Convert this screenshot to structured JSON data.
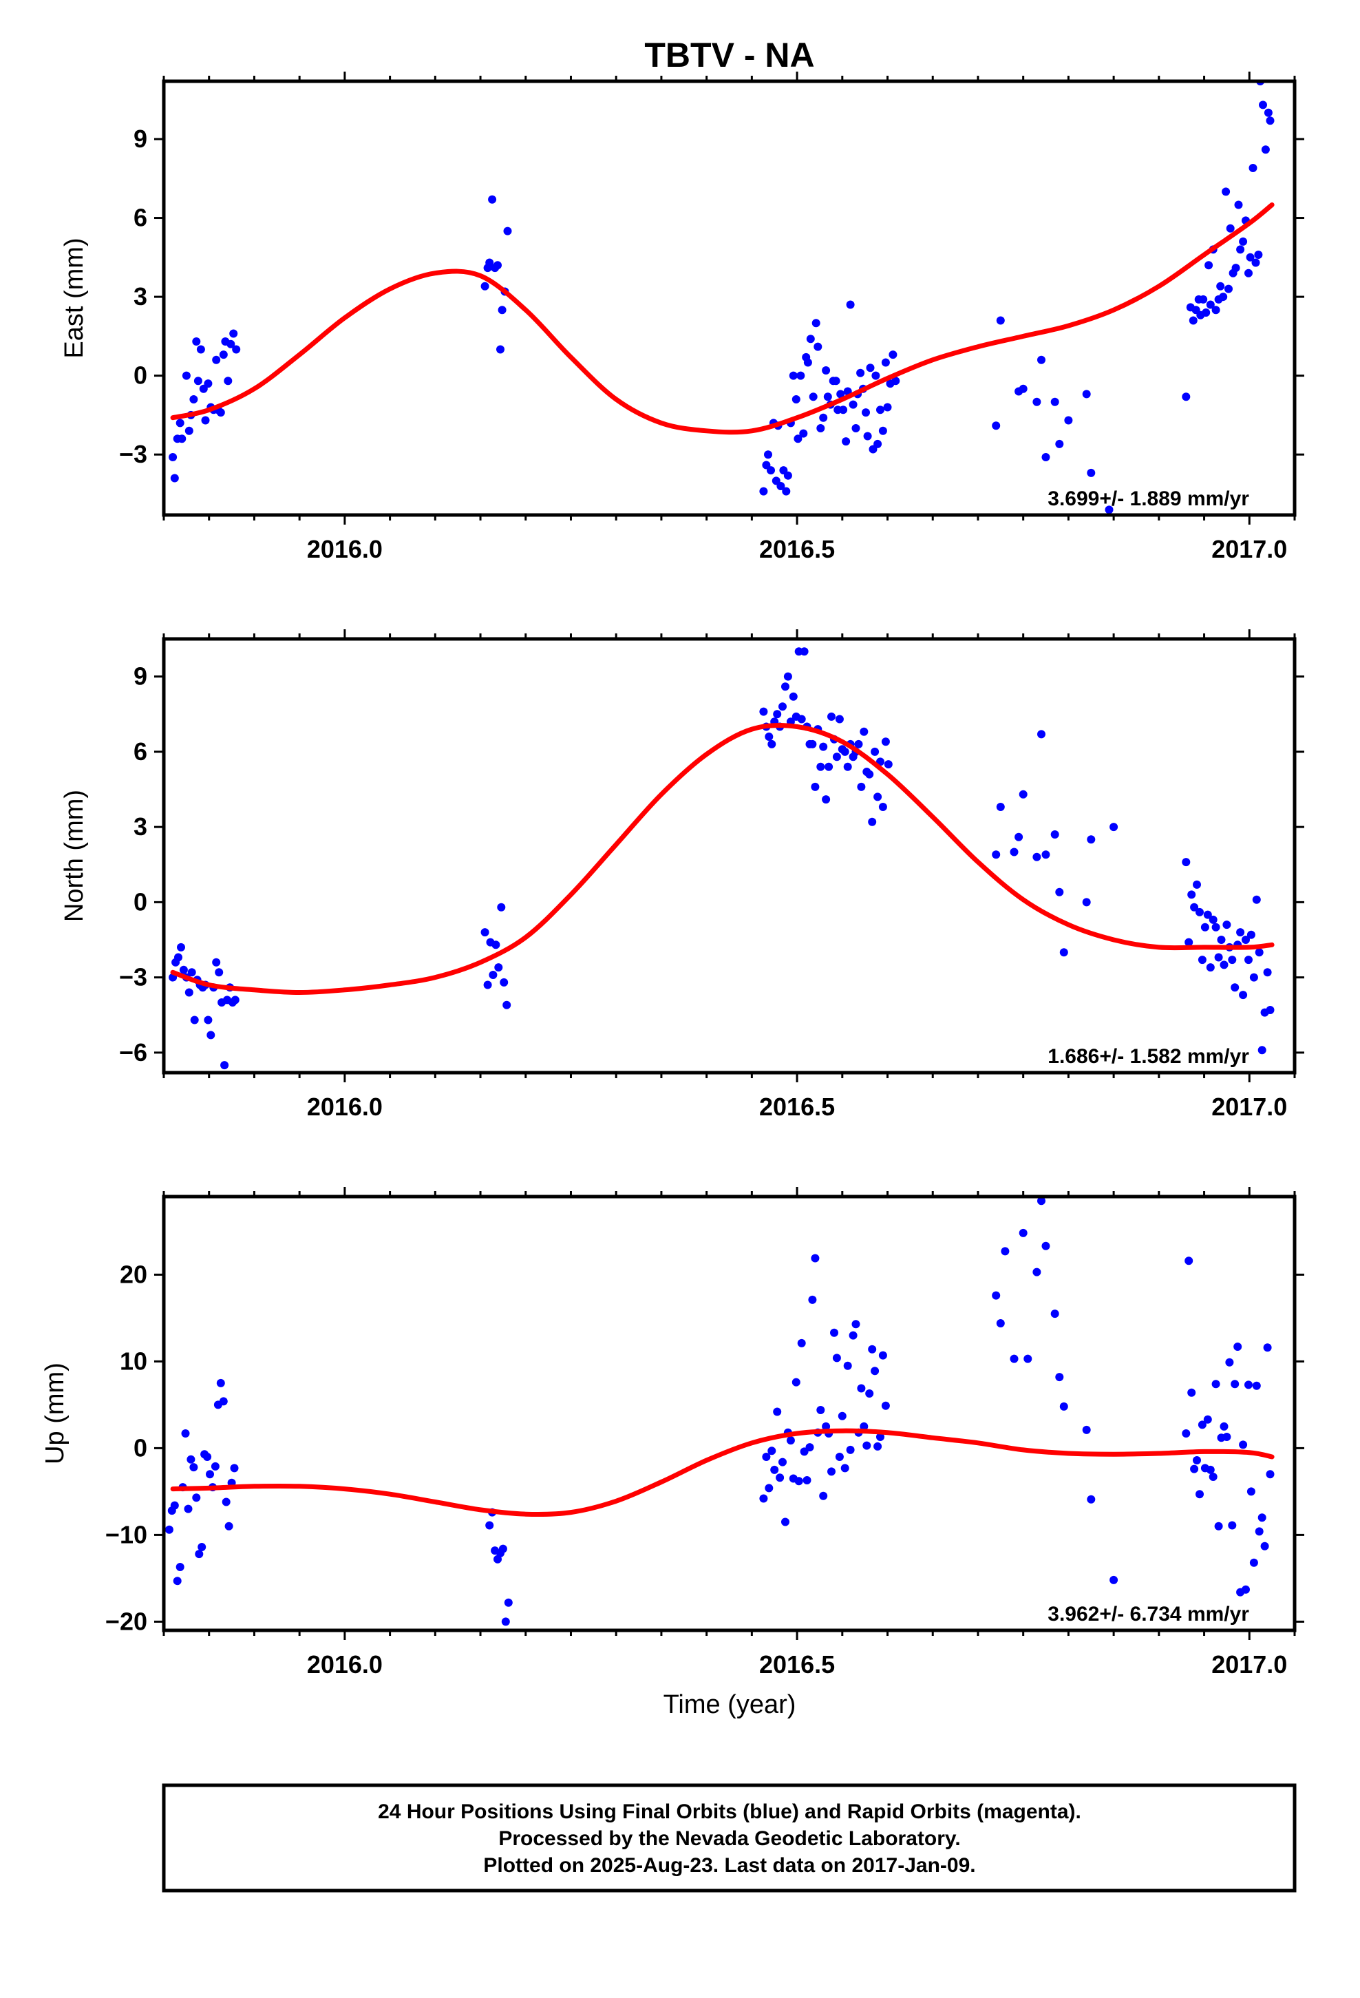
{
  "title": "TBTV - NA",
  "x_axis_label": "Time (year)",
  "footer_lines": [
    "24 Hour Positions Using Final Orbits (blue) and Rapid Orbits (magenta).",
    "Processed by the Nevada Geodetic Laboratory.",
    "Plotted on 2025-Aug-23. Last data on 2017-Jan-09."
  ],
  "colors": {
    "points": "#0000ff",
    "fit": "#ff0000",
    "frame": "#000000"
  },
  "chart_data": [
    {
      "type": "scatter",
      "ylabel": "East (mm)",
      "xlim": [
        2015.8,
        2017.05
      ],
      "ylim": [
        -5.3,
        11.2
      ],
      "xticks": [
        2016.0,
        2016.5,
        2017.0
      ],
      "xtick_labels": [
        "2016.0",
        "2016.5",
        "2017.0"
      ],
      "yticks": [
        -3,
        0,
        3,
        6,
        9
      ],
      "ytick_labels": [
        "−3",
        "0",
        "3",
        "6",
        "9"
      ],
      "grid": false,
      "rate_label": "3.699+/- 1.889 mm/yr",
      "points": {
        "x": [
          2015.81,
          2015.812,
          2015.815,
          2015.818,
          2015.82,
          2015.825,
          2015.828,
          2015.83,
          2015.833,
          2015.836,
          2015.838,
          2015.841,
          2015.844,
          2015.846,
          2015.849,
          2015.852,
          2015.855,
          2015.858,
          2015.86,
          2015.863,
          2015.866,
          2015.868,
          2015.871,
          2015.874,
          2015.877,
          2015.88,
          2016.155,
          2016.158,
          2016.16,
          2016.163,
          2016.166,
          2016.169,
          2016.172,
          2016.174,
          2016.177,
          2016.18,
          2016.463,
          2016.466,
          2016.468,
          2016.471,
          2016.474,
          2016.477,
          2016.479,
          2016.482,
          2016.485,
          2016.488,
          2016.49,
          2016.493,
          2016.496,
          2016.499,
          2016.501,
          2016.504,
          2016.507,
          2016.51,
          2016.512,
          2016.515,
          2016.518,
          2016.521,
          2016.523,
          2016.526,
          2016.529,
          2016.532,
          2016.534,
          2016.537,
          2016.54,
          2016.543,
          2016.545,
          2016.548,
          2016.551,
          2016.554,
          2016.556,
          2016.559,
          2016.562,
          2016.565,
          2016.567,
          2016.57,
          2016.573,
          2016.576,
          2016.578,
          2016.581,
          2016.584,
          2016.587,
          2016.589,
          2016.592,
          2016.595,
          2016.598,
          2016.6,
          2016.603,
          2016.606,
          2016.609,
          2016.72,
          2016.725,
          2016.745,
          2016.75,
          2016.765,
          2016.77,
          2016.775,
          2016.785,
          2016.79,
          2016.8,
          2016.82,
          2016.825,
          2016.845,
          2016.93,
          2016.935,
          2016.938,
          2016.941,
          2016.944,
          2016.946,
          2016.949,
          2016.952,
          2016.955,
          2016.957,
          2016.96,
          2016.963,
          2016.966,
          2016.968,
          2016.971,
          2016.974,
          2016.977,
          2016.979,
          2016.982,
          2016.985,
          2016.988,
          2016.99,
          2016.993,
          2016.996,
          2016.999,
          2017.001,
          2017.004,
          2017.007,
          2017.01,
          2017.012,
          2017.015,
          2017.018,
          2017.021,
          2017.023
        ],
        "y": [
          -3.1,
          -3.9,
          -2.4,
          -1.8,
          -2.4,
          0.0,
          -2.1,
          -1.5,
          -0.9,
          1.3,
          -0.2,
          1.0,
          -0.5,
          -1.7,
          -0.3,
          -1.2,
          -1.3,
          0.6,
          -1.3,
          -1.4,
          0.8,
          1.3,
          -0.2,
          1.2,
          1.6,
          1.0,
          3.4,
          4.1,
          4.3,
          6.7,
          4.1,
          4.2,
          1.0,
          2.5,
          3.2,
          5.5,
          -4.4,
          -3.4,
          -3.0,
          -3.6,
          -1.8,
          -4.0,
          -1.9,
          -4.2,
          -3.6,
          -4.4,
          -3.8,
          -1.8,
          0.0,
          -0.9,
          -2.4,
          0.0,
          -2.2,
          0.7,
          0.5,
          1.4,
          -0.8,
          2.0,
          1.1,
          -2.0,
          -1.6,
          0.2,
          -0.8,
          -1.1,
          -0.2,
          -0.2,
          -1.3,
          -0.7,
          -1.3,
          -2.5,
          -0.6,
          2.7,
          -1.1,
          -2.0,
          -0.7,
          0.1,
          -0.5,
          -1.4,
          -2.3,
          0.3,
          -2.8,
          0.0,
          -2.6,
          -1.3,
          -2.1,
          0.5,
          -1.2,
          -0.3,
          0.8,
          -0.2,
          -1.9,
          2.1,
          -0.6,
          -0.5,
          -1.0,
          0.6,
          -3.1,
          -1.0,
          -2.6,
          -1.7,
          -0.7,
          -3.7,
          -5.1,
          -0.8,
          2.6,
          2.1,
          2.5,
          2.9,
          2.3,
          2.9,
          2.4,
          4.2,
          2.7,
          4.8,
          2.5,
          2.9,
          3.4,
          3.0,
          7.0,
          3.3,
          5.6,
          3.9,
          4.1,
          6.5,
          4.8,
          5.1,
          5.9,
          3.9,
          4.5,
          7.9,
          4.3,
          4.6,
          11.2,
          10.3,
          8.6,
          10.0,
          9.7
        ]
      },
      "fit": {
        "x": [
          2015.81,
          2015.85,
          2015.9,
          2015.95,
          2016.0,
          2016.05,
          2016.1,
          2016.15,
          2016.2,
          2016.25,
          2016.3,
          2016.35,
          2016.4,
          2016.45,
          2016.5,
          2016.55,
          2016.6,
          2016.65,
          2016.7,
          2016.75,
          2016.8,
          2016.85,
          2016.9,
          2016.95,
          2017.0,
          2017.025
        ],
        "y": [
          -1.6,
          -1.3,
          -0.5,
          0.8,
          2.2,
          3.3,
          3.9,
          3.8,
          2.5,
          0.7,
          -0.9,
          -1.8,
          -2.1,
          -2.1,
          -1.6,
          -0.9,
          -0.1,
          0.6,
          1.1,
          1.5,
          1.9,
          2.5,
          3.4,
          4.6,
          5.8,
          6.5
        ]
      }
    },
    {
      "type": "scatter",
      "ylabel": "North (mm)",
      "xlim": [
        2015.8,
        2017.05
      ],
      "ylim": [
        -6.8,
        10.5
      ],
      "xticks": [
        2016.0,
        2016.5,
        2017.0
      ],
      "xtick_labels": [
        "2016.0",
        "2016.5",
        "2017.0"
      ],
      "yticks": [
        -6,
        -3,
        0,
        3,
        6,
        9
      ],
      "ytick_labels": [
        "−6",
        "−3",
        "0",
        "3",
        "6",
        "9"
      ],
      "grid": false,
      "rate_label": "1.686+/- 1.582 mm/yr",
      "points": {
        "x": [
          2015.81,
          2015.813,
          2015.816,
          2015.819,
          2015.822,
          2015.825,
          2015.828,
          2015.831,
          2015.834,
          2015.837,
          2015.84,
          2015.843,
          2015.846,
          2015.849,
          2015.852,
          2015.855,
          2015.858,
          2015.861,
          2015.864,
          2015.867,
          2015.87,
          2015.873,
          2015.876,
          2015.879,
          2016.155,
          2016.158,
          2016.161,
          2016.164,
          2016.167,
          2016.17,
          2016.173,
          2016.176,
          2016.179,
          2016.463,
          2016.466,
          2016.469,
          2016.472,
          2016.475,
          2016.478,
          2016.481,
          2016.484,
          2016.487,
          2016.49,
          2016.493,
          2016.496,
          2016.499,
          2016.502,
          2016.505,
          2016.508,
          2016.511,
          2016.514,
          2016.517,
          2016.52,
          2016.523,
          2016.526,
          2016.529,
          2016.532,
          2016.535,
          2016.538,
          2016.541,
          2016.544,
          2016.547,
          2016.55,
          2016.553,
          2016.556,
          2016.559,
          2016.562,
          2016.565,
          2016.568,
          2016.571,
          2016.574,
          2016.577,
          2016.58,
          2016.583,
          2016.586,
          2016.589,
          2016.592,
          2016.595,
          2016.598,
          2016.601,
          2016.72,
          2016.725,
          2016.74,
          2016.745,
          2016.75,
          2016.765,
          2016.77,
          2016.775,
          2016.785,
          2016.79,
          2016.795,
          2016.82,
          2016.825,
          2016.85,
          2016.93,
          2016.933,
          2016.936,
          2016.939,
          2016.942,
          2016.945,
          2016.948,
          2016.951,
          2016.954,
          2016.957,
          2016.96,
          2016.963,
          2016.966,
          2016.969,
          2016.972,
          2016.975,
          2016.978,
          2016.981,
          2016.984,
          2016.987,
          2016.99,
          2016.993,
          2016.996,
          2016.999,
          2017.002,
          2017.005,
          2017.008,
          2017.011,
          2017.014,
          2017.017,
          2017.02,
          2017.023
        ],
        "y": [
          -3.0,
          -2.4,
          -2.2,
          -1.8,
          -2.7,
          -3.0,
          -3.6,
          -2.8,
          -4.7,
          -3.1,
          -3.3,
          -3.4,
          -3.3,
          -4.7,
          -5.3,
          -3.4,
          -2.4,
          -2.8,
          -4.0,
          -6.5,
          -3.9,
          -3.4,
          -4.0,
          -3.9,
          -1.2,
          -3.3,
          -1.6,
          -2.9,
          -1.7,
          -2.6,
          -0.2,
          -3.2,
          -4.1,
          7.6,
          7.0,
          6.6,
          6.3,
          7.2,
          7.5,
          7.0,
          7.8,
          8.6,
          9.0,
          7.2,
          8.2,
          7.4,
          10.0,
          7.3,
          10.0,
          7.0,
          6.3,
          6.3,
          4.6,
          6.9,
          5.4,
          6.2,
          4.1,
          5.4,
          7.4,
          6.5,
          5.8,
          7.3,
          6.1,
          6.0,
          5.4,
          6.3,
          5.8,
          6.0,
          6.3,
          4.6,
          6.8,
          5.2,
          5.1,
          3.2,
          6.0,
          4.2,
          5.6,
          3.8,
          6.4,
          5.5,
          1.9,
          3.8,
          2.0,
          2.6,
          4.3,
          1.8,
          6.7,
          1.9,
          2.7,
          0.4,
          -2.0,
          0.0,
          2.5,
          3.0,
          1.6,
          -1.6,
          0.3,
          -0.2,
          0.7,
          -0.4,
          -2.3,
          -1.0,
          -0.5,
          -2.6,
          -0.7,
          -1.0,
          -2.2,
          -1.5,
          -2.5,
          -0.9,
          -1.8,
          -2.3,
          -3.4,
          -1.7,
          -1.2,
          -3.7,
          -1.5,
          -2.3,
          -1.3,
          -3.0,
          0.1,
          -2.0,
          -5.9,
          -4.4,
          -2.8,
          -4.3
        ]
      },
      "fit": {
        "x": [
          2015.81,
          2015.85,
          2015.9,
          2015.95,
          2016.0,
          2016.05,
          2016.1,
          2016.15,
          2016.2,
          2016.25,
          2016.3,
          2016.35,
          2016.4,
          2016.45,
          2016.5,
          2016.55,
          2016.6,
          2016.65,
          2016.7,
          2016.75,
          2016.8,
          2016.85,
          2016.9,
          2016.95,
          2017.0,
          2017.025
        ],
        "y": [
          -2.8,
          -3.3,
          -3.5,
          -3.6,
          -3.5,
          -3.3,
          -3.0,
          -2.4,
          -1.4,
          0.3,
          2.3,
          4.3,
          5.9,
          6.9,
          7.0,
          6.4,
          5.1,
          3.4,
          1.6,
          0.1,
          -0.9,
          -1.5,
          -1.8,
          -1.8,
          -1.8,
          -1.7
        ]
      }
    },
    {
      "type": "scatter",
      "ylabel": "Up (mm)",
      "xlim": [
        2015.8,
        2017.05
      ],
      "ylim": [
        -21,
        29
      ],
      "xticks": [
        2016.0,
        2016.5,
        2017.0
      ],
      "xtick_labels": [
        "2016.0",
        "2016.5",
        "2017.0"
      ],
      "yticks": [
        -20,
        -10,
        0,
        10,
        20
      ],
      "ytick_labels": [
        "−20",
        "−10",
        "0",
        "10",
        "20"
      ],
      "grid": false,
      "rate_label": "3.962+/- 6.734 mm/yr",
      "points": {
        "x": [
          2015.806,
          2015.809,
          2015.812,
          2015.815,
          2015.818,
          2015.821,
          2015.824,
          2015.827,
          2015.83,
          2015.833,
          2015.836,
          2015.839,
          2015.842,
          2015.845,
          2015.848,
          2015.851,
          2015.854,
          2015.857,
          2015.86,
          2015.863,
          2015.866,
          2015.869,
          2015.872,
          2015.875,
          2015.878,
          2016.16,
          2016.163,
          2016.166,
          2016.169,
          2016.172,
          2016.175,
          2016.178,
          2016.181,
          2016.463,
          2016.466,
          2016.469,
          2016.472,
          2016.475,
          2016.478,
          2016.481,
          2016.484,
          2016.487,
          2016.49,
          2016.493,
          2016.496,
          2016.499,
          2016.502,
          2016.505,
          2016.508,
          2016.511,
          2016.514,
          2016.517,
          2016.52,
          2016.523,
          2016.526,
          2016.529,
          2016.532,
          2016.535,
          2016.538,
          2016.541,
          2016.544,
          2016.547,
          2016.55,
          2016.553,
          2016.556,
          2016.559,
          2016.562,
          2016.565,
          2016.568,
          2016.571,
          2016.574,
          2016.577,
          2016.58,
          2016.583,
          2016.586,
          2016.589,
          2016.592,
          2016.595,
          2016.598,
          2016.72,
          2016.725,
          2016.73,
          2016.74,
          2016.75,
          2016.755,
          2016.765,
          2016.77,
          2016.775,
          2016.785,
          2016.79,
          2016.795,
          2016.82,
          2016.825,
          2016.85,
          2016.93,
          2016.933,
          2016.936,
          2016.939,
          2016.942,
          2016.945,
          2016.948,
          2016.951,
          2016.954,
          2016.957,
          2016.96,
          2016.963,
          2016.966,
          2016.969,
          2016.972,
          2016.975,
          2016.978,
          2016.981,
          2016.984,
          2016.987,
          2016.99,
          2016.993,
          2016.996,
          2016.999,
          2017.002,
          2017.005,
          2017.008,
          2017.011,
          2017.014,
          2017.017,
          2017.02,
          2017.023
        ],
        "y": [
          -9.4,
          -7.2,
          -6.6,
          -15.3,
          -13.7,
          -4.5,
          1.7,
          -7.0,
          -1.3,
          -2.2,
          -5.7,
          -12.2,
          -11.4,
          -0.7,
          -1.0,
          -3.0,
          -4.5,
          -2.1,
          5.0,
          7.5,
          5.4,
          -6.2,
          -9.0,
          -4.0,
          -2.3,
          -8.9,
          -7.4,
          -11.8,
          -12.8,
          -12.1,
          -11.6,
          -20.0,
          -17.8,
          -5.8,
          -1.0,
          -4.6,
          -0.3,
          -2.5,
          4.2,
          -3.4,
          -1.6,
          -8.5,
          1.8,
          0.9,
          -3.5,
          7.6,
          -3.8,
          12.1,
          -0.4,
          -3.7,
          0.1,
          17.1,
          21.9,
          1.8,
          4.4,
          -5.5,
          2.5,
          1.7,
          -2.7,
          13.3,
          10.4,
          -1.0,
          3.7,
          -2.3,
          9.5,
          -0.2,
          13.0,
          14.3,
          1.8,
          6.9,
          2.5,
          0.3,
          6.3,
          11.4,
          8.9,
          0.2,
          1.3,
          10.7,
          4.9,
          17.6,
          14.4,
          22.7,
          10.3,
          24.8,
          10.3,
          20.3,
          28.5,
          23.3,
          15.5,
          8.2,
          4.8,
          2.1,
          -5.9,
          -15.2,
          1.7,
          21.6,
          6.4,
          -2.4,
          -1.4,
          -5.3,
          2.7,
          -2.3,
          3.3,
          -2.5,
          -3.3,
          7.4,
          -9.0,
          1.2,
          2.5,
          1.3,
          9.9,
          -8.9,
          7.4,
          11.7,
          -16.6,
          0.4,
          -16.3,
          7.3,
          -5.0,
          -13.2,
          7.2,
          -9.6,
          -8.0,
          -11.3,
          11.6,
          -3.0
        ]
      },
      "fit": {
        "x": [
          2015.81,
          2015.85,
          2015.9,
          2015.95,
          2016.0,
          2016.05,
          2016.1,
          2016.15,
          2016.2,
          2016.25,
          2016.3,
          2016.35,
          2016.4,
          2016.45,
          2016.5,
          2016.55,
          2016.6,
          2016.65,
          2016.7,
          2016.75,
          2016.8,
          2016.85,
          2016.9,
          2016.95,
          2017.0,
          2017.025
        ],
        "y": [
          -4.7,
          -4.6,
          -4.4,
          -4.4,
          -4.7,
          -5.3,
          -6.2,
          -7.1,
          -7.6,
          -7.4,
          -6.1,
          -3.9,
          -1.4,
          0.6,
          1.7,
          2.0,
          1.8,
          1.2,
          0.6,
          -0.2,
          -0.6,
          -0.7,
          -0.6,
          -0.4,
          -0.5,
          -1.0
        ]
      }
    }
  ]
}
